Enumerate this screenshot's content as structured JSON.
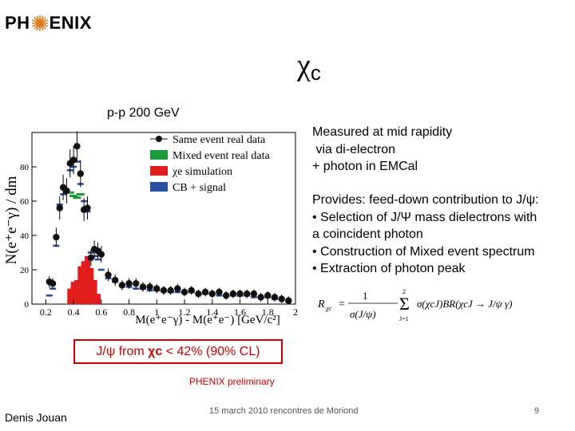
{
  "logo": {
    "left": "PH",
    "right": "ENIX"
  },
  "slide_title": {
    "main": "χ",
    "sub": "c"
  },
  "subtitle": "p-p  200 GeV",
  "measured": [
    "Measured at mid rapidity",
    " via di-electron",
    "+ photon in EMCal"
  ],
  "provides": [
    "Provides: feed-down contribution to J/ψ:",
    "• Selection of J/Ψ mass dielectrons with",
    "a coincident  photon",
    "• Construction of Mixed event spectrum",
    "• Extraction of photon peak"
  ],
  "formula": {
    "lhs": "R",
    "lhs_sub": "χc",
    "num": "1",
    "den": "σ(J/ψ)",
    "sum_top": "2",
    "sum_bot": "J=1",
    "body": "σ(χcJ)BR(χcJ → J/ψ γ)"
  },
  "conclusion": {
    "prefix": "J/ψ from ",
    "chi": "χc",
    "suffix": " < 42% (90% CL)"
  },
  "preliminary": "PHENIX preliminary",
  "footer": {
    "author": "Denis Jouan",
    "center": "15 march 2010  rencontres de Moriond",
    "page": "9"
  },
  "colors": {
    "accent": "#cc0000",
    "mixed": "#1a9a3a",
    "sim": "#e11d1d",
    "cb": "#2a4ea0"
  },
  "chart_data": {
    "type": "scatter",
    "xlabel": "M(e⁺e⁻γ) - M(e⁺e⁻)  [GeV/c²]",
    "ylabel": "N(e⁺e⁻γ) / dm",
    "xlim": [
      0.1,
      2.0
    ],
    "ylim": [
      0,
      100
    ],
    "xticks": [
      0.2,
      0.4,
      0.6,
      0.8,
      1.0,
      1.2,
      1.4,
      1.6,
      1.8,
      2.0
    ],
    "xtick_labels": [
      "0.2",
      "0.4",
      "0.6",
      "0.8",
      "1",
      "1.2",
      "1.4",
      "1.6",
      "1.8",
      "2"
    ],
    "yticks": [
      0,
      20,
      40,
      60,
      80
    ],
    "legend": [
      "Same event real data",
      "Mixed event real data",
      "χe simulation",
      "CB + signal"
    ],
    "legend_position": "top-right",
    "series": [
      {
        "name": "Same event real data",
        "style": "points",
        "x": [
          0.225,
          0.25,
          0.275,
          0.3,
          0.325,
          0.35,
          0.375,
          0.4,
          0.425,
          0.45,
          0.475,
          0.5,
          0.525,
          0.55,
          0.575,
          0.6,
          0.65,
          0.7,
          0.75,
          0.8,
          0.85,
          0.9,
          0.95,
          1.0,
          1.05,
          1.1,
          1.15,
          1.2,
          1.25,
          1.3,
          1.35,
          1.4,
          1.45,
          1.5,
          1.55,
          1.6,
          1.65,
          1.7,
          1.75,
          1.8,
          1.85,
          1.9,
          1.95
        ],
        "y": [
          13,
          12,
          39,
          56,
          68,
          66,
          82,
          84,
          92,
          76,
          55,
          56,
          27,
          32,
          31,
          29,
          17,
          14,
          11,
          12,
          12,
          10,
          10,
          9,
          8,
          8,
          9,
          7,
          8,
          6,
          7,
          6,
          7,
          5,
          6,
          6,
          6,
          6,
          4,
          5,
          4,
          3,
          2
        ]
      },
      {
        "name": "Mixed event real data",
        "style": "dash",
        "x": [
          0.375,
          0.4,
          0.425,
          0.45
        ],
        "y": [
          65,
          63,
          62,
          64
        ]
      },
      {
        "name": "χe simulation",
        "style": "bars",
        "x": [
          0.375,
          0.4,
          0.425,
          0.45,
          0.475,
          0.5,
          0.525,
          0.55,
          0.575
        ],
        "y": [
          9,
          13,
          14,
          22,
          25,
          28,
          21,
          14,
          6
        ]
      },
      {
        "name": "CB + signal",
        "style": "dash",
        "x": [
          0.225,
          0.25,
          0.275,
          0.3,
          0.325,
          0.35,
          0.375,
          0.4,
          0.425,
          0.45,
          0.475,
          0.5,
          0.525,
          0.55,
          0.575,
          0.6,
          0.65,
          0.7,
          0.75,
          0.8,
          0.85,
          0.9,
          0.95,
          1.0,
          1.05,
          1.1,
          1.15,
          1.2,
          1.25,
          1.3,
          1.35,
          1.4,
          1.45,
          1.5,
          1.55,
          1.6,
          1.65,
          1.7,
          1.75,
          1.8,
          1.85,
          1.9,
          1.95
        ],
        "y": [
          5,
          9,
          34,
          58,
          64,
          65,
          78,
          80,
          83,
          70,
          60,
          54,
          30,
          28,
          26,
          20,
          15,
          13,
          11,
          10,
          9,
          9,
          8,
          8,
          8,
          7,
          7,
          7,
          7,
          6,
          6,
          6,
          5,
          5,
          5,
          5,
          5,
          4,
          4,
          4,
          3,
          3,
          2
        ]
      }
    ]
  }
}
